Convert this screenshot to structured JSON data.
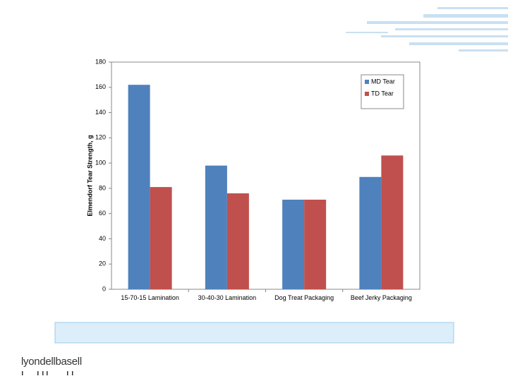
{
  "chart_data": {
    "type": "bar",
    "y_label": "Elmendorf Tear Strength, g",
    "categories": [
      "15-70-15 Lamination",
      "30-40-30 Lamination",
      "Dog Treat Packaging",
      "Beef Jerky Packaging"
    ],
    "series": [
      {
        "name": "MD Tear",
        "color": "#4f81bd",
        "values": [
          162,
          98,
          71,
          89
        ]
      },
      {
        "name": "TD Tear",
        "color": "#c0504d",
        "values": [
          81,
          76,
          71,
          106
        ]
      }
    ],
    "ylim": [
      0,
      180
    ],
    "yticks": [
      0,
      20,
      40,
      60,
      80,
      100,
      120,
      140,
      160,
      180
    ],
    "legend": "top-right"
  },
  "logo": "lyondellbasell"
}
